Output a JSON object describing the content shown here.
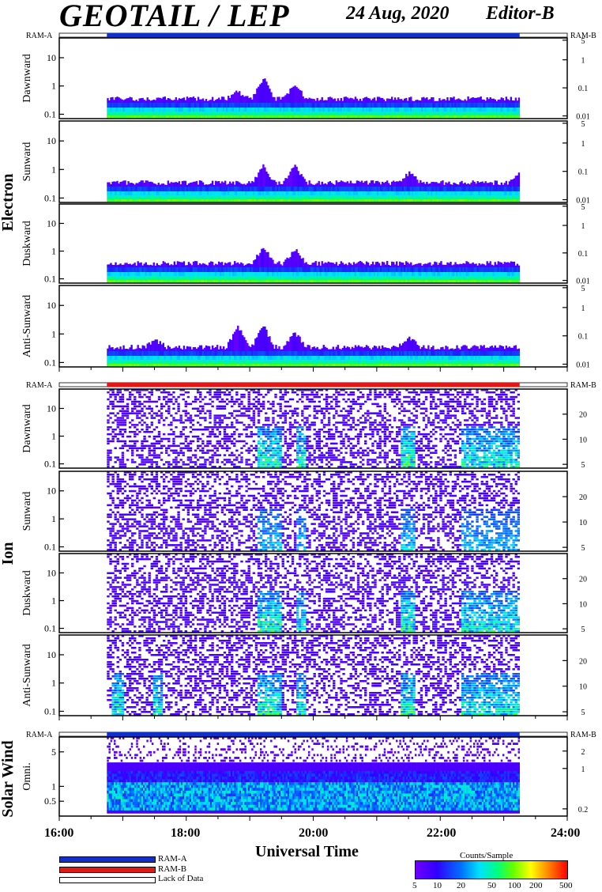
{
  "header": {
    "title": "GEOTAIL / LEP",
    "date": "24 Aug, 2020",
    "editor": "Editor-B"
  },
  "ram": {
    "a": "RAM-A",
    "b": "RAM-B"
  },
  "groups": {
    "electron": "Electron",
    "ion": "Ion",
    "solar_wind": "Solar Wind"
  },
  "x_axis": {
    "title": "Universal Time",
    "ticks": [
      "16:00",
      "18:00",
      "20:00",
      "22:00",
      "24:00"
    ]
  },
  "legend": {
    "ram_a": "RAM-A",
    "ram_b": "RAM-B",
    "lack": "Lack of Data"
  },
  "colorbar": {
    "title": "Counts/Sample",
    "ticks": [
      "5",
      "10",
      "20",
      "50",
      "100",
      "200",
      "500"
    ]
  },
  "colors": {
    "ram_a": "#1030c8",
    "ram_b": "#e01818"
  },
  "chart_data": {
    "type": "heatmap",
    "x_range_hours": [
      16,
      24
    ],
    "data_coverage_hours": [
      16.75,
      23.25
    ],
    "panels": [
      {
        "group": "Electron",
        "label": "Dawnward",
        "left_ticks": [
          "10",
          "1",
          "0.1"
        ],
        "right_ticks": [
          "5",
          "1",
          "0.1",
          "0.01"
        ]
      },
      {
        "group": "Electron",
        "label": "Sunward",
        "left_ticks": [
          "10",
          "1",
          "0.1"
        ],
        "right_ticks": [
          "5",
          "1",
          "0.1",
          "0.01"
        ]
      },
      {
        "group": "Electron",
        "label": "Duskward",
        "left_ticks": [
          "10",
          "1",
          "0.1"
        ],
        "right_ticks": [
          "5",
          "1",
          "0.1",
          "0.01"
        ]
      },
      {
        "group": "Electron",
        "label": "Anti-Sunward",
        "left_ticks": [
          "10",
          "1",
          "0.1"
        ],
        "right_ticks": [
          "5",
          "1",
          "0.1",
          "0.01"
        ]
      },
      {
        "group": "Ion",
        "label": "Dawnward",
        "left_ticks": [
          "10",
          "1",
          "0.1"
        ],
        "right_ticks": [
          "20",
          "10",
          "5"
        ]
      },
      {
        "group": "Ion",
        "label": "Sunward",
        "left_ticks": [
          "10",
          "1",
          "0.1"
        ],
        "right_ticks": [
          "20",
          "10",
          "5"
        ]
      },
      {
        "group": "Ion",
        "label": "Duskward",
        "left_ticks": [
          "10",
          "1",
          "0.1"
        ],
        "right_ticks": [
          "20",
          "10",
          "5"
        ]
      },
      {
        "group": "Ion",
        "label": "Anti-Sunward",
        "left_ticks": [
          "10",
          "1",
          "0.1"
        ],
        "right_ticks": [
          "20",
          "10",
          "5"
        ]
      },
      {
        "group": "Solar Wind",
        "label": "Omni.",
        "left_ticks": [
          "5",
          "1",
          "0.5"
        ],
        "right_ticks": [
          "2",
          "1",
          "0.2"
        ]
      }
    ],
    "ram_bars": [
      {
        "group": "Electron",
        "mode": "RAM-A"
      },
      {
        "group": "Ion",
        "mode": "RAM-B"
      },
      {
        "group": "Solar Wind",
        "mode": "RAM-A"
      }
    ],
    "colorscale": {
      "min": 5,
      "max": 500,
      "scale": "log"
    }
  }
}
